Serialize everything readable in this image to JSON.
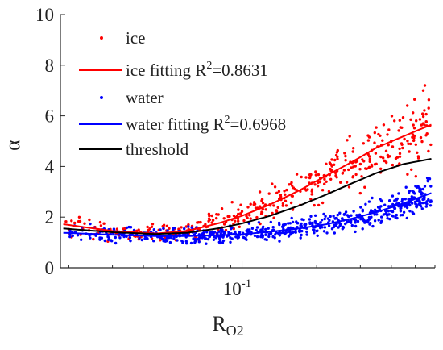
{
  "chart_data": {
    "type": "scatter",
    "xscale": "log",
    "xlim": [
      0.0185,
      0.6
    ],
    "ylim": [
      0,
      10
    ],
    "xlabel": "R",
    "xlabel_sub": "O2",
    "ylabel": "α",
    "xticks": [
      {
        "value": 0.1,
        "base": "10",
        "exp": "-1"
      }
    ],
    "yticks": [
      0,
      2,
      4,
      6,
      8,
      10
    ],
    "grid": false,
    "legend_position": "top-left",
    "colors": {
      "ice": "#ff0000",
      "water": "#0000ff",
      "threshold": "#000000"
    },
    "fitting_curves": [
      {
        "key": "ice_fit",
        "color": "#ff0000",
        "x": [
          0.019,
          0.03,
          0.045,
          0.06,
          0.08,
          0.1,
          0.13,
          0.17,
          0.22,
          0.28,
          0.35,
          0.45,
          0.58
        ],
        "y": [
          1.72,
          1.45,
          1.35,
          1.45,
          1.75,
          2.05,
          2.5,
          3.05,
          3.65,
          4.2,
          4.75,
          5.2,
          5.65
        ]
      },
      {
        "key": "water_fit",
        "color": "#0000ff",
        "x": [
          0.019,
          0.03,
          0.045,
          0.06,
          0.08,
          0.1,
          0.13,
          0.17,
          0.22,
          0.28,
          0.35,
          0.45,
          0.58
        ],
        "y": [
          1.38,
          1.3,
          1.25,
          1.25,
          1.28,
          1.32,
          1.42,
          1.55,
          1.72,
          1.95,
          2.2,
          2.55,
          2.95
        ]
      },
      {
        "key": "threshold",
        "color": "#000000",
        "x": [
          0.019,
          0.03,
          0.045,
          0.06,
          0.08,
          0.1,
          0.13,
          0.17,
          0.22,
          0.28,
          0.35,
          0.45,
          0.58
        ],
        "y": [
          1.55,
          1.4,
          1.33,
          1.38,
          1.55,
          1.75,
          2.05,
          2.45,
          2.9,
          3.35,
          3.75,
          4.1,
          4.3
        ]
      }
    ],
    "scatter_series": [
      {
        "key": "ice",
        "color": "#ff0000",
        "n": 420,
        "noise_frac": 0.13,
        "curve": "ice_fit"
      },
      {
        "key": "water",
        "color": "#0000ff",
        "n": 620,
        "noise_frac": 0.12,
        "curve": "water_fit"
      }
    ]
  },
  "legend": {
    "ice": "ice",
    "ice_fit_prefix": "ice fitting R",
    "ice_fit_sup": "2",
    "ice_fit_suffix": "=0.8631",
    "water": "water",
    "water_fit_prefix": "water fitting R",
    "water_fit_sup": "2",
    "water_fit_suffix": "=0.6968",
    "threshold": "threshold"
  }
}
